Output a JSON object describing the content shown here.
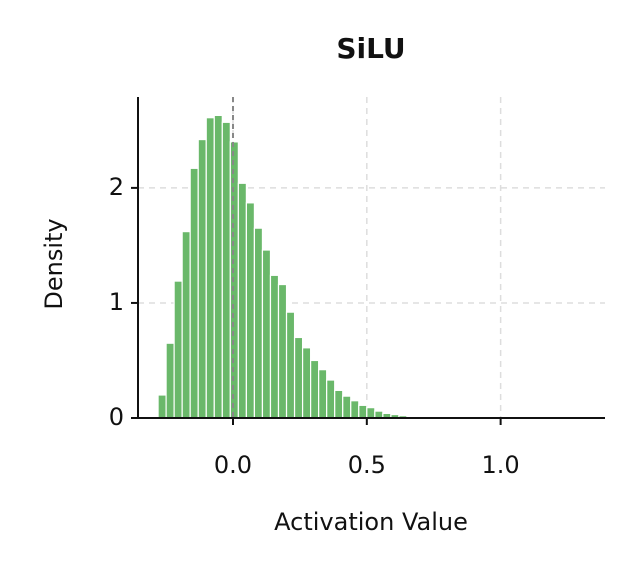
{
  "chart_data": {
    "type": "histogram",
    "title": "SiLU",
    "xlabel": "Activation Value",
    "ylabel": "Density",
    "bins": [
      -0.28,
      -0.25,
      -0.22,
      -0.19,
      -0.16,
      -0.13,
      -0.1,
      -0.07,
      -0.04,
      -0.01,
      0.02,
      0.05,
      0.08,
      0.11,
      0.14,
      0.17,
      0.2,
      0.23,
      0.26,
      0.29,
      0.32,
      0.35,
      0.38,
      0.41,
      0.44,
      0.47,
      0.5,
      0.53,
      0.56,
      0.59,
      0.62,
      0.65,
      0.68,
      0.71,
      0.74
    ],
    "values": [
      0.2,
      0.65,
      1.19,
      1.62,
      2.17,
      2.42,
      2.61,
      2.63,
      2.57,
      2.4,
      2.04,
      1.87,
      1.65,
      1.46,
      1.24,
      1.16,
      0.92,
      0.7,
      0.61,
      0.5,
      0.42,
      0.33,
      0.24,
      0.19,
      0.15,
      0.11,
      0.09,
      0.06,
      0.04,
      0.03,
      0.02,
      0.01,
      0.01,
      0.005
    ],
    "color": "#6ab86a",
    "vline": 0,
    "xlim": [
      -0.355,
      1.39
    ],
    "xticks": [
      {
        "value": 0,
        "label": "0.0"
      },
      {
        "value": 0.5,
        "label": "0.5"
      },
      {
        "value": 1,
        "label": "1.0"
      }
    ],
    "ylim": [
      0,
      2.79
    ],
    "yticks": [
      0,
      1,
      2
    ],
    "grid": true
  }
}
